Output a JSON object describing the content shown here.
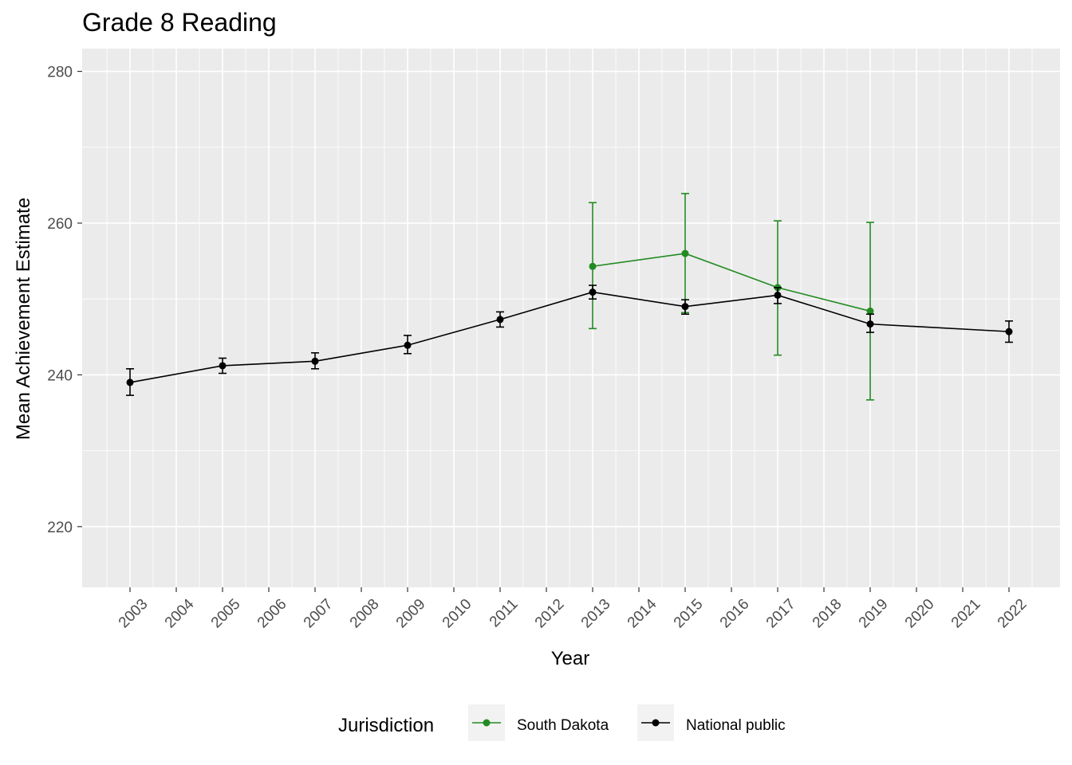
{
  "chart_data": {
    "type": "line",
    "title": "Grade 8 Reading",
    "xlabel": "Year",
    "ylabel": "Mean Achievement Estimate",
    "ylim": [
      212,
      283
    ],
    "yticks": [
      220,
      240,
      260,
      280
    ],
    "x_categories": [
      "2003",
      "2004",
      "2005",
      "2006",
      "2007",
      "2008",
      "2009",
      "2010",
      "2011",
      "2012",
      "2013",
      "2014",
      "2015",
      "2016",
      "2017",
      "2018",
      "2019",
      "2020",
      "2021",
      "2022"
    ],
    "legend_title": "Jurisdiction",
    "legend_position": "bottom",
    "grid": true,
    "series": [
      {
        "name": "South Dakota",
        "color": "#228B22",
        "points": [
          {
            "x": "2013",
            "y": 254.3,
            "lo": 246.1,
            "hi": 262.7
          },
          {
            "x": "2015",
            "y": 256.0,
            "lo": 248.2,
            "hi": 263.9
          },
          {
            "x": "2017",
            "y": 251.5,
            "lo": 242.6,
            "hi": 260.3
          },
          {
            "x": "2019",
            "y": 248.4,
            "lo": 236.7,
            "hi": 260.1
          }
        ]
      },
      {
        "name": "National public",
        "color": "#000000",
        "points": [
          {
            "x": "2003",
            "y": 239.0,
            "lo": 237.3,
            "hi": 240.8
          },
          {
            "x": "2005",
            "y": 241.2,
            "lo": 240.2,
            "hi": 242.2
          },
          {
            "x": "2007",
            "y": 241.8,
            "lo": 240.8,
            "hi": 242.9
          },
          {
            "x": "2009",
            "y": 243.9,
            "lo": 242.8,
            "hi": 245.2
          },
          {
            "x": "2011",
            "y": 247.3,
            "lo": 246.3,
            "hi": 248.3
          },
          {
            "x": "2013",
            "y": 250.9,
            "lo": 250.0,
            "hi": 251.8
          },
          {
            "x": "2015",
            "y": 249.0,
            "lo": 248.0,
            "hi": 249.9
          },
          {
            "x": "2017",
            "y": 250.5,
            "lo": 249.4,
            "hi": 251.5
          },
          {
            "x": "2019",
            "y": 246.7,
            "lo": 245.6,
            "hi": 248.0
          },
          {
            "x": "2022",
            "y": 245.7,
            "lo": 244.3,
            "hi": 247.1
          }
        ]
      }
    ]
  }
}
